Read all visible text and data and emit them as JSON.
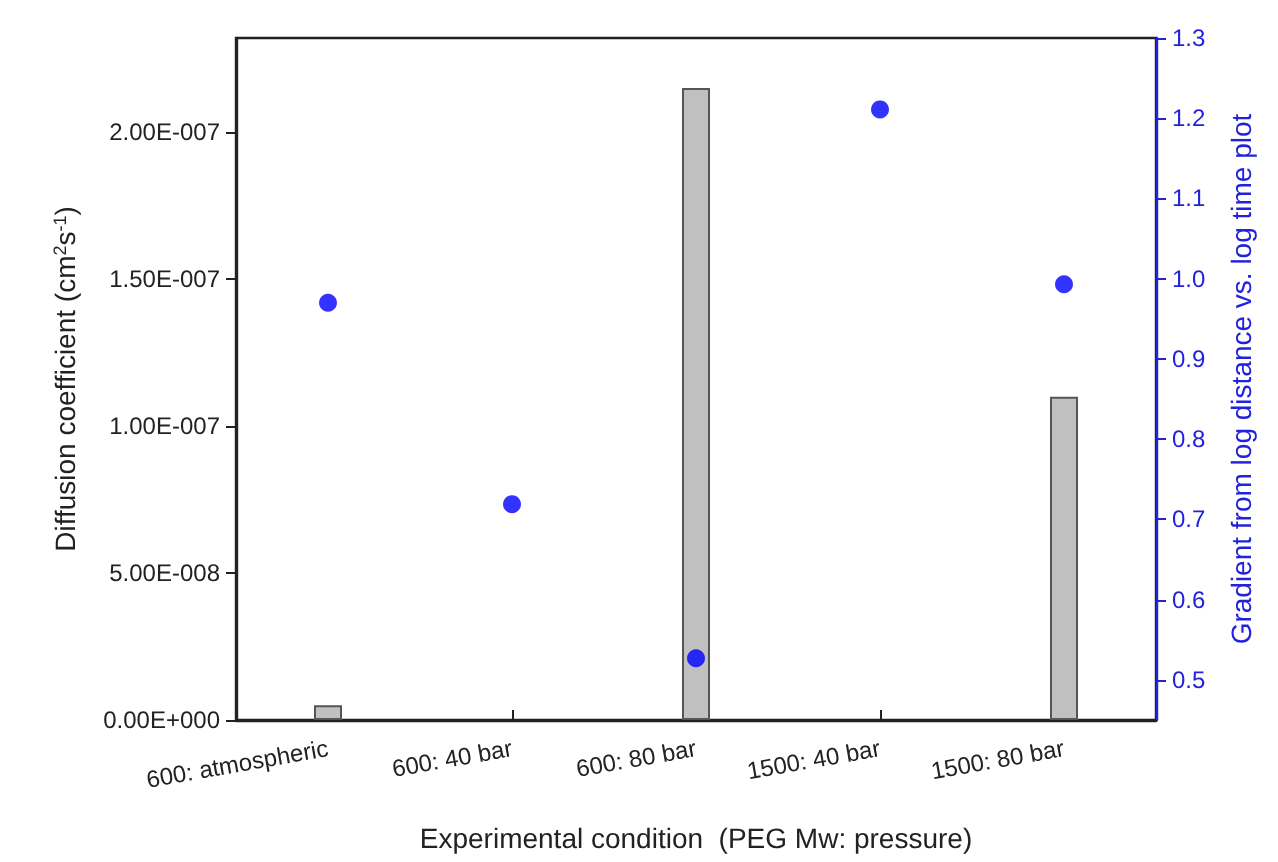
{
  "chart_data": {
    "type": "bar",
    "xlabel": "Experimental condition  (PEG Mw: pressure)",
    "ylabel": "Diffusion coefficient (cm$^{2}$s$^{-1}$)",
    "y2label": "Gradient from log distance vs. log time plot",
    "categories": [
      "600: atmospheric",
      "600: 40 bar",
      "600: 80 bar",
      "1500: 40 bar",
      "1500: 80 bar"
    ],
    "series": [
      {
        "color": "#c0c0c0",
        "values": [
          5e-09,
          null,
          2.15e-07,
          null,
          1.1e-07
        ]
      },
      {
        "type": "scatter",
        "axis": "y2",
        "color": "#0000ff",
        "marker": "circle",
        "values": [
          0.97,
          0.719,
          0.527,
          1.211,
          0.993
        ]
      }
    ],
    "ylim": [
      0,
      2.32e-07
    ],
    "yticks": [
      {
        "value": 0,
        "label": "0.00E+000"
      },
      {
        "value": 5e-08,
        "label": "5.00E-008"
      },
      {
        "value": 1e-07,
        "label": "1.00E-007"
      },
      {
        "value": 1.5e-07,
        "label": "1.50E-007"
      },
      {
        "value": 2e-07,
        "label": "2.00E-007"
      }
    ],
    "y2lim": [
      0.45,
      1.3
    ],
    "y2ticks": [
      {
        "value": 0.5,
        "label": "0.5"
      },
      {
        "value": 0.6,
        "label": "0.6"
      },
      {
        "value": 0.7,
        "label": "0.7"
      },
      {
        "value": 0.8,
        "label": "0.8"
      },
      {
        "value": 0.9,
        "label": "0.9"
      },
      {
        "value": 1.0,
        "label": "1.0"
      },
      {
        "value": 1.1,
        "label": "1.1"
      },
      {
        "value": 1.2,
        "label": "1.2"
      },
      {
        "value": 1.3,
        "label": "1.3"
      }
    ],
    "grid": false
  }
}
